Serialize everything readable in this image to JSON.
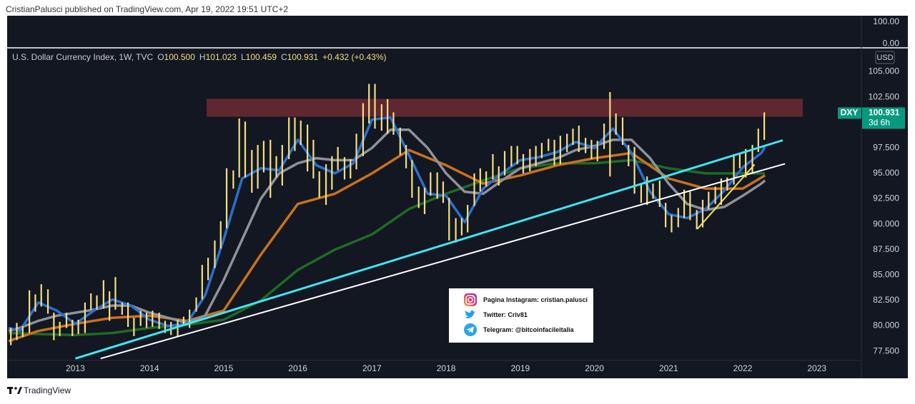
{
  "header": "CristianPalusci published on TradingView.com, Apr 19, 2022 19:51 UTC+2",
  "footer": "TradingView",
  "legend": {
    "symbol": "U.S. Dollar Currency Index, 1W, TVC",
    "ohlc": [
      {
        "label": "O",
        "value": "100.500"
      },
      {
        "label": "H",
        "value": "101.023"
      },
      {
        "label": "L",
        "value": "100.459"
      },
      {
        "label": "C",
        "value": "100.931"
      }
    ],
    "change": "+0.432 (+0.43%)"
  },
  "info_box": [
    "Pagina Instagram: cristian.palusci",
    "Twitter: Criv81",
    "Telegram: @bitcoinfacileitalia"
  ],
  "top_pane": {
    "ylim": [
      -23,
      130
    ],
    "yticks": [
      {
        "value": 100,
        "label": "100.00"
      },
      {
        "value": 0,
        "label": "0.00"
      }
    ]
  },
  "chart_data": {
    "type": "range",
    "currency": "USD",
    "last_price": {
      "symbol": "DXY",
      "value": 100.931,
      "countdown": "3d 6h"
    },
    "color": "#f3df84",
    "grid": false,
    "xlim": [
      2012.08,
      2023.6
    ],
    "xticks": [
      2013,
      2014,
      2015,
      2016,
      2017,
      2018,
      2019,
      2020,
      2021,
      2022,
      2023
    ],
    "ylim": [
      76.6,
      107
    ],
    "yticks": [
      {
        "value": 77.5,
        "label": "77.500"
      },
      {
        "value": 80,
        "label": "80.000"
      },
      {
        "value": 82.5,
        "label": "82.500"
      },
      {
        "value": 85,
        "label": "85.000"
      },
      {
        "value": 87.5,
        "label": "87.500"
      },
      {
        "value": 90,
        "label": "90.000"
      },
      {
        "value": 92.5,
        "label": "92.500"
      },
      {
        "value": 95,
        "label": "95.000"
      },
      {
        "value": 97.5,
        "label": "97.500"
      },
      {
        "value": 100,
        "label": "100.000"
      },
      {
        "value": 102.5,
        "label": "102.500"
      },
      {
        "value": 105,
        "label": "105.000"
      }
    ],
    "x": [
      2012.13,
      2012.21,
      2012.29,
      2012.38,
      2012.46,
      2012.54,
      2012.63,
      2012.71,
      2012.79,
      2012.88,
      2012.96,
      2013.04,
      2013.13,
      2013.21,
      2013.29,
      2013.38,
      2013.46,
      2013.54,
      2013.63,
      2013.71,
      2013.79,
      2013.88,
      2013.96,
      2014.04,
      2014.13,
      2014.21,
      2014.29,
      2014.38,
      2014.46,
      2014.54,
      2014.63,
      2014.71,
      2014.79,
      2014.88,
      2014.96,
      2015.04,
      2015.13,
      2015.21,
      2015.29,
      2015.38,
      2015.46,
      2015.54,
      2015.63,
      2015.71,
      2015.79,
      2015.88,
      2015.96,
      2016.04,
      2016.13,
      2016.21,
      2016.29,
      2016.38,
      2016.46,
      2016.54,
      2016.63,
      2016.71,
      2016.79,
      2016.88,
      2016.96,
      2017.04,
      2017.13,
      2017.21,
      2017.29,
      2017.38,
      2017.46,
      2017.54,
      2017.63,
      2017.71,
      2017.79,
      2017.88,
      2017.96,
      2018.04,
      2018.13,
      2018.21,
      2018.29,
      2018.38,
      2018.46,
      2018.54,
      2018.63,
      2018.71,
      2018.79,
      2018.88,
      2018.96,
      2019.04,
      2019.13,
      2019.21,
      2019.29,
      2019.38,
      2019.46,
      2019.54,
      2019.63,
      2019.71,
      2019.79,
      2019.88,
      2019.96,
      2020.04,
      2020.13,
      2020.21,
      2020.29,
      2020.38,
      2020.46,
      2020.54,
      2020.63,
      2020.71,
      2020.79,
      2020.88,
      2020.96,
      2021.04,
      2021.13,
      2021.21,
      2021.29,
      2021.38,
      2021.46,
      2021.54,
      2021.63,
      2021.71,
      2021.79,
      2021.88,
      2021.96,
      2022.04,
      2022.13,
      2022.21,
      2022.29
    ],
    "highs": [
      79.8,
      80.3,
      80.0,
      83.5,
      83.1,
      84.1,
      83.6,
      81.3,
      80.4,
      81.3,
      80.6,
      80.6,
      82.3,
      83.2,
      83.0,
      84.5,
      83.4,
      84.8,
      82.3,
      82.3,
      80.8,
      81.5,
      81.3,
      81.5,
      81.3,
      80.5,
      80.4,
      80.6,
      80.9,
      81.6,
      82.8,
      86.0,
      86.7,
      88.4,
      90.3,
      95.5,
      95.3,
      100.4,
      100.1,
      97.3,
      97.8,
      98.2,
      98.3,
      96.7,
      97.8,
      100.5,
      100.5,
      100.2,
      99.8,
      98.3,
      95.2,
      95.9,
      96.7,
      97.6,
      96.6,
      96.4,
      98.9,
      101.9,
      103.8,
      103.8,
      101.8,
      102.3,
      101.0,
      99.5,
      97.8,
      96.3,
      93.7,
      93.6,
      95.1,
      95.1,
      94.2,
      92.6,
      90.6,
      90.6,
      91.9,
      95.0,
      95.5,
      95.2,
      96.9,
      95.7,
      97.2,
      97.7,
      97.7,
      96.9,
      97.4,
      97.7,
      98.0,
      98.4,
      98.3,
      98.7,
      98.9,
      99.4,
      99.7,
      98.5,
      98.3,
      98.2,
      99.9,
      103.0,
      100.9,
      100.5,
      97.8,
      97.6,
      93.9,
      94.7,
      94.0,
      94.3,
      92.1,
      90.9,
      91.6,
      93.4,
      93.2,
      91.4,
      92.4,
      93.2,
      93.7,
      94.5,
      94.6,
      96.9,
      96.9,
      97.4,
      97.8,
      99.4,
      101.0
    ],
    "lows": [
      78.1,
      78.6,
      78.9,
      79.3,
      81.4,
      81.9,
      81.2,
      78.6,
      79.0,
      79.8,
      79.0,
      79.2,
      79.3,
      81.6,
      81.6,
      81.7,
      80.5,
      81.6,
      81.1,
      79.9,
      79.0,
      80.0,
      79.8,
      79.9,
      79.7,
      79.3,
      79.1,
      78.9,
      80.0,
      79.8,
      81.4,
      82.6,
      84.5,
      85.7,
      87.6,
      89.6,
      93.5,
      94.6,
      94.6,
      93.1,
      93.5,
      95.1,
      92.6,
      94.6,
      93.8,
      96.4,
      97.2,
      97.8,
      95.2,
      94.5,
      92.6,
      91.9,
      93.4,
      95.3,
      94.4,
      94.5,
      95.4,
      96.7,
      99.9,
      99.4,
      99.2,
      98.9,
      98.8,
      96.8,
      95.5,
      92.6,
      91.6,
      91.0,
      92.8,
      92.5,
      92.1,
      88.4,
      88.2,
      88.9,
      89.2,
      91.8,
      93.2,
      93.7,
      94.4,
      93.8,
      94.8,
      95.7,
      95.9,
      95.0,
      95.2,
      95.7,
      96.5,
      97.2,
      95.8,
      95.9,
      97.1,
      97.8,
      97.1,
      97.0,
      96.4,
      96.2,
      97.4,
      94.7,
      98.8,
      97.8,
      95.7,
      93.0,
      92.1,
      91.9,
      92.5,
      91.7,
      89.7,
      89.2,
      89.7,
      90.6,
      90.4,
      89.5,
      89.7,
      91.5,
      92.0,
      91.9,
      93.3,
      93.9,
      95.5,
      94.6,
      95.1,
      97.1,
      98.3
    ],
    "moving_averages": [
      {
        "color": "#1e6b22",
        "x": [
          2012.1,
          2012.5,
          2013,
          2013.5,
          2014,
          2014.5,
          2015,
          2015.5,
          2016,
          2016.5,
          2017,
          2017.5,
          2018,
          2018.5,
          2019,
          2019.5,
          2020,
          2020.5,
          2021,
          2021.5,
          2022,
          2022.3
        ],
        "values": [
          79.3,
          79.2,
          79.1,
          79.3,
          79.8,
          80.1,
          80.6,
          82.5,
          85.5,
          87.5,
          89.0,
          91.5,
          93.0,
          94.3,
          95.5,
          96.0,
          96.0,
          96.3,
          95.5,
          95.0,
          95.0,
          95.0
        ]
      },
      {
        "color": "#c9711f",
        "x": [
          2012.1,
          2012.5,
          2013,
          2013.5,
          2014,
          2014.5,
          2015,
          2015.5,
          2016,
          2016.5,
          2017,
          2017.5,
          2018,
          2018.5,
          2019,
          2019.5,
          2020,
          2020.5,
          2021,
          2021.5,
          2022,
          2022.3
        ],
        "values": [
          78.5,
          79.5,
          80.2,
          80.8,
          81.0,
          80.5,
          81.5,
          87.0,
          92.0,
          93.0,
          95.0,
          97.3,
          95.8,
          94.0,
          94.8,
          95.8,
          96.5,
          97.0,
          94.5,
          93.5,
          93.5,
          94.8
        ]
      },
      {
        "color": "#8f9299",
        "x": [
          2012.1,
          2012.25,
          2012.5,
          2012.75,
          2013,
          2013.25,
          2013.5,
          2013.75,
          2014,
          2014.25,
          2014.5,
          2014.75,
          2015,
          2015.25,
          2015.5,
          2015.75,
          2016,
          2016.25,
          2016.5,
          2016.75,
          2017,
          2017.25,
          2017.5,
          2017.75,
          2018,
          2018.25,
          2018.5,
          2018.75,
          2019,
          2019.25,
          2019.5,
          2019.75,
          2020,
          2020.25,
          2020.5,
          2020.75,
          2021,
          2021.25,
          2021.5,
          2021.75,
          2022,
          2022.25,
          2022.3
        ],
        "values": [
          79.5,
          79.8,
          80.5,
          81.0,
          81.3,
          81.6,
          82.0,
          82.0,
          81.3,
          80.8,
          80.3,
          81.0,
          84.5,
          88.5,
          92.5,
          95.0,
          96.0,
          96.5,
          96.3,
          96.3,
          97.5,
          99.3,
          99.3,
          97.5,
          95.0,
          93.2,
          93.0,
          94.3,
          95.5,
          96.0,
          96.5,
          97.3,
          97.7,
          98.3,
          98.3,
          96.5,
          94.0,
          92.0,
          91.4,
          91.7,
          92.8,
          94.0,
          94.3
        ]
      },
      {
        "color": "#2a6fd1",
        "x": [
          2012.1,
          2012.25,
          2012.5,
          2012.75,
          2013,
          2013.25,
          2013.5,
          2013.75,
          2014,
          2014.25,
          2014.5,
          2014.75,
          2015,
          2015.25,
          2015.5,
          2015.75,
          2016,
          2016.25,
          2016.5,
          2016.75,
          2017,
          2017.25,
          2017.5,
          2017.75,
          2018,
          2018.25,
          2018.5,
          2018.75,
          2019,
          2019.25,
          2019.5,
          2019.75,
          2020,
          2020.25,
          2020.5,
          2020.75,
          2021,
          2021.25,
          2021.5,
          2021.75,
          2022,
          2022.25,
          2022.3
        ],
        "values": [
          79.8,
          79.5,
          82.3,
          81.5,
          80.2,
          81.5,
          82.6,
          82.0,
          80.6,
          80.0,
          80.2,
          83.0,
          88.5,
          94.5,
          95.5,
          95.3,
          98.3,
          95.8,
          95.0,
          96.0,
          100.3,
          100.5,
          96.8,
          93.0,
          92.8,
          90.2,
          93.5,
          95.0,
          96.3,
          96.6,
          97.1,
          98.1,
          97.5,
          99.4,
          97.0,
          93.2,
          91.0,
          90.6,
          91.5,
          93.3,
          95.6,
          97.0,
          97.6
        ]
      }
    ],
    "trendlines": [
      {
        "color": "#ffffff",
        "x": [
          2013.34,
          2022.57
        ],
        "values": [
          76.79,
          95.95
        ]
      },
      {
        "color": "#3ee6f2",
        "x": [
          2013.0,
          2022.54
        ],
        "values": [
          76.79,
          98.26
        ]
      },
      {
        "color": "#f2e24f",
        "x": [
          2021.39,
          2022.16
        ],
        "values": [
          89.56,
          95.88
        ]
      }
    ],
    "zone": {
      "color": "#6a2932",
      "x": [
        2014.77,
        2022.81
      ],
      "y": [
        100.58,
        102.33
      ]
    }
  }
}
